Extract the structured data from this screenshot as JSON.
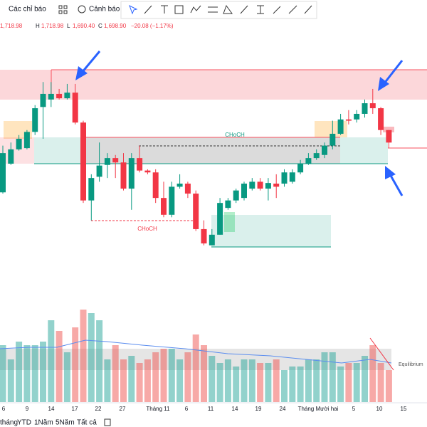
{
  "toolbar": {
    "indicators": "Các chỉ báo",
    "alerts": "Cảnh báo"
  },
  "legend": {
    "parts": [
      "1,718.98",
      "H",
      "1,718.98",
      "L",
      "1,690.40",
      "C",
      "1,698.90",
      "−20.08 (−1.17%)"
    ]
  },
  "chart_data": {
    "type": "candlestick",
    "open": [
      1619,
      1665,
      1688,
      1690,
      1716,
      1756,
      1768,
      1777,
      1770,
      1779,
      1731,
      1606,
      1644,
      1663,
      1674,
      1667,
      1625,
      1674,
      1654,
      1651,
      1610,
      1583,
      1628,
      1633,
      1617,
      1560,
      1534,
      1551,
      1594,
      1606,
      1610,
      1625,
      1636,
      1625,
      1633,
      1633,
      1636,
      1651,
      1665,
      1674,
      1679,
      1694,
      1713,
      1736,
      1736,
      1745,
      1762,
      1754,
      1718.98
    ],
    "high": [
      1694,
      1699,
      1711,
      1719,
      1759,
      1796,
      1796,
      1785,
      1793,
      1793,
      1734,
      1648,
      1699,
      1682,
      1679,
      1682,
      1682,
      1694,
      1656,
      1656,
      1636,
      1636,
      1648,
      1636,
      1622,
      1574,
      1560,
      1610,
      1610,
      1625,
      1636,
      1642,
      1642,
      1642,
      1648,
      1656,
      1656,
      1671,
      1682,
      1688,
      1699,
      1734,
      1745,
      1751,
      1751,
      1768,
      1785,
      1756,
      1718.98
    ],
    "low": [
      1617,
      1663,
      1686,
      1688,
      1711,
      1705,
      1756,
      1768,
      1768,
      1728,
      1602,
      1574,
      1636,
      1642,
      1642,
      1622,
      1591,
      1651,
      1648,
      1602,
      1579,
      1579,
      1625,
      1610,
      1557,
      1534,
      1534,
      1551,
      1591,
      1602,
      1606,
      1622,
      1622,
      1606,
      1610,
      1628,
      1633,
      1648,
      1663,
      1671,
      1674,
      1688,
      1711,
      1728,
      1731,
      1739,
      1745,
      1711,
      1690.4
    ],
    "close": [
      1682,
      1688,
      1705,
      1716,
      1754,
      1777,
      1777,
      1770,
      1779,
      1731,
      1606,
      1642,
      1662,
      1674,
      1667,
      1625,
      1674,
      1654,
      1651,
      1610,
      1583,
      1628,
      1633,
      1617,
      1560,
      1537,
      1551,
      1602,
      1606,
      1622,
      1633,
      1636,
      1625,
      1634,
      1628,
      1651,
      1651,
      1665,
      1674,
      1682,
      1694,
      1713,
      1736,
      1734,
      1745,
      1762,
      1754,
      1719,
      1698.9
    ],
    "ylim": [
      1448,
      1882
    ],
    "volume": [
      80,
      60,
      85,
      80,
      80,
      85,
      115,
      100,
      70,
      105,
      130,
      125,
      115,
      60,
      80,
      60,
      65,
      55,
      60,
      70,
      75,
      75,
      60,
      70,
      95,
      80,
      65,
      55,
      60,
      50,
      60,
      60,
      55,
      55,
      60,
      45,
      50,
      50,
      60,
      60,
      70,
      70,
      50,
      55,
      55,
      65,
      80,
      55,
      45
    ],
    "volume_ylim": [
      0,
      150
    ],
    "up_color": "#089981",
    "down_color": "#f23645",
    "annotations": {
      "choch_up": "CHoCH",
      "choch_down": "CHoCH",
      "equilibrium": "Equilibrium"
    },
    "x_tick_labels": [
      "6",
      "9",
      "14",
      "17",
      "22",
      "27",
      "Tháng 11",
      "6",
      "11",
      "14",
      "19",
      "24",
      "Tháng Mười hai",
      "5",
      "10",
      "15"
    ]
  },
  "range_bar": [
    "tháng",
    "YTD",
    "1Năm",
    "5Năm",
    "Tất cả"
  ]
}
